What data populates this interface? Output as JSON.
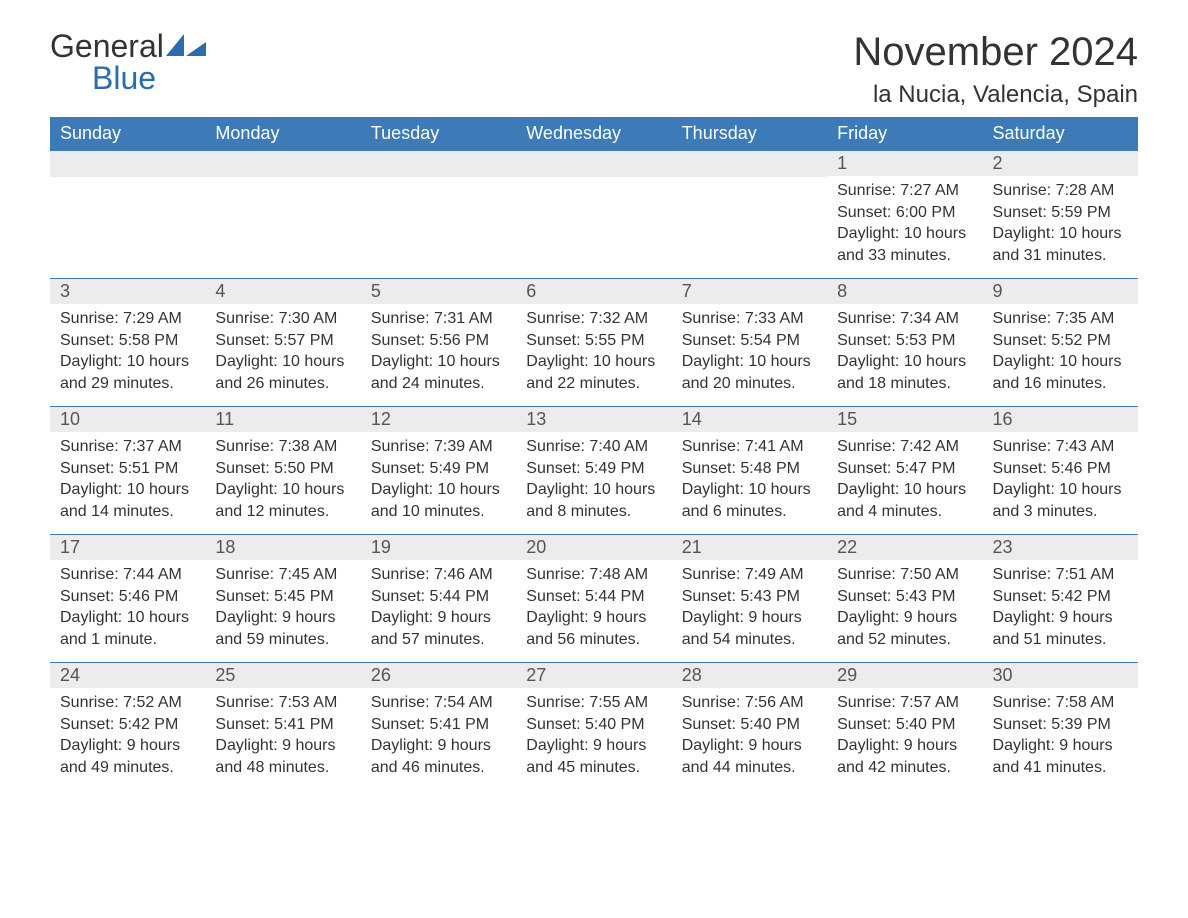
{
  "logo": {
    "general": "General",
    "blue": "Blue"
  },
  "header": {
    "month_title": "November 2024",
    "location": "la Nucia, Valencia, Spain"
  },
  "calendar": {
    "day_headers": [
      "Sunday",
      "Monday",
      "Tuesday",
      "Wednesday",
      "Thursday",
      "Friday",
      "Saturday"
    ],
    "header_bg": "#3d7ab8",
    "header_fg": "#ffffff",
    "daynum_bg": "#ececec",
    "row_border": "#3d7ab8",
    "text_color": "#333333",
    "fontsize_header": 18,
    "fontsize_daynum": 18,
    "fontsize_body": 16,
    "weeks": [
      [
        null,
        null,
        null,
        null,
        null,
        {
          "num": "1",
          "sunrise": "Sunrise: 7:27 AM",
          "sunset": "Sunset: 6:00 PM",
          "daylight": "Daylight: 10 hours and 33 minutes."
        },
        {
          "num": "2",
          "sunrise": "Sunrise: 7:28 AM",
          "sunset": "Sunset: 5:59 PM",
          "daylight": "Daylight: 10 hours and 31 minutes."
        }
      ],
      [
        {
          "num": "3",
          "sunrise": "Sunrise: 7:29 AM",
          "sunset": "Sunset: 5:58 PM",
          "daylight": "Daylight: 10 hours and 29 minutes."
        },
        {
          "num": "4",
          "sunrise": "Sunrise: 7:30 AM",
          "sunset": "Sunset: 5:57 PM",
          "daylight": "Daylight: 10 hours and 26 minutes."
        },
        {
          "num": "5",
          "sunrise": "Sunrise: 7:31 AM",
          "sunset": "Sunset: 5:56 PM",
          "daylight": "Daylight: 10 hours and 24 minutes."
        },
        {
          "num": "6",
          "sunrise": "Sunrise: 7:32 AM",
          "sunset": "Sunset: 5:55 PM",
          "daylight": "Daylight: 10 hours and 22 minutes."
        },
        {
          "num": "7",
          "sunrise": "Sunrise: 7:33 AM",
          "sunset": "Sunset: 5:54 PM",
          "daylight": "Daylight: 10 hours and 20 minutes."
        },
        {
          "num": "8",
          "sunrise": "Sunrise: 7:34 AM",
          "sunset": "Sunset: 5:53 PM",
          "daylight": "Daylight: 10 hours and 18 minutes."
        },
        {
          "num": "9",
          "sunrise": "Sunrise: 7:35 AM",
          "sunset": "Sunset: 5:52 PM",
          "daylight": "Daylight: 10 hours and 16 minutes."
        }
      ],
      [
        {
          "num": "10",
          "sunrise": "Sunrise: 7:37 AM",
          "sunset": "Sunset: 5:51 PM",
          "daylight": "Daylight: 10 hours and 14 minutes."
        },
        {
          "num": "11",
          "sunrise": "Sunrise: 7:38 AM",
          "sunset": "Sunset: 5:50 PM",
          "daylight": "Daylight: 10 hours and 12 minutes."
        },
        {
          "num": "12",
          "sunrise": "Sunrise: 7:39 AM",
          "sunset": "Sunset: 5:49 PM",
          "daylight": "Daylight: 10 hours and 10 minutes."
        },
        {
          "num": "13",
          "sunrise": "Sunrise: 7:40 AM",
          "sunset": "Sunset: 5:49 PM",
          "daylight": "Daylight: 10 hours and 8 minutes."
        },
        {
          "num": "14",
          "sunrise": "Sunrise: 7:41 AM",
          "sunset": "Sunset: 5:48 PM",
          "daylight": "Daylight: 10 hours and 6 minutes."
        },
        {
          "num": "15",
          "sunrise": "Sunrise: 7:42 AM",
          "sunset": "Sunset: 5:47 PM",
          "daylight": "Daylight: 10 hours and 4 minutes."
        },
        {
          "num": "16",
          "sunrise": "Sunrise: 7:43 AM",
          "sunset": "Sunset: 5:46 PM",
          "daylight": "Daylight: 10 hours and 3 minutes."
        }
      ],
      [
        {
          "num": "17",
          "sunrise": "Sunrise: 7:44 AM",
          "sunset": "Sunset: 5:46 PM",
          "daylight": "Daylight: 10 hours and 1 minute."
        },
        {
          "num": "18",
          "sunrise": "Sunrise: 7:45 AM",
          "sunset": "Sunset: 5:45 PM",
          "daylight": "Daylight: 9 hours and 59 minutes."
        },
        {
          "num": "19",
          "sunrise": "Sunrise: 7:46 AM",
          "sunset": "Sunset: 5:44 PM",
          "daylight": "Daylight: 9 hours and 57 minutes."
        },
        {
          "num": "20",
          "sunrise": "Sunrise: 7:48 AM",
          "sunset": "Sunset: 5:44 PM",
          "daylight": "Daylight: 9 hours and 56 minutes."
        },
        {
          "num": "21",
          "sunrise": "Sunrise: 7:49 AM",
          "sunset": "Sunset: 5:43 PM",
          "daylight": "Daylight: 9 hours and 54 minutes."
        },
        {
          "num": "22",
          "sunrise": "Sunrise: 7:50 AM",
          "sunset": "Sunset: 5:43 PM",
          "daylight": "Daylight: 9 hours and 52 minutes."
        },
        {
          "num": "23",
          "sunrise": "Sunrise: 7:51 AM",
          "sunset": "Sunset: 5:42 PM",
          "daylight": "Daylight: 9 hours and 51 minutes."
        }
      ],
      [
        {
          "num": "24",
          "sunrise": "Sunrise: 7:52 AM",
          "sunset": "Sunset: 5:42 PM",
          "daylight": "Daylight: 9 hours and 49 minutes."
        },
        {
          "num": "25",
          "sunrise": "Sunrise: 7:53 AM",
          "sunset": "Sunset: 5:41 PM",
          "daylight": "Daylight: 9 hours and 48 minutes."
        },
        {
          "num": "26",
          "sunrise": "Sunrise: 7:54 AM",
          "sunset": "Sunset: 5:41 PM",
          "daylight": "Daylight: 9 hours and 46 minutes."
        },
        {
          "num": "27",
          "sunrise": "Sunrise: 7:55 AM",
          "sunset": "Sunset: 5:40 PM",
          "daylight": "Daylight: 9 hours and 45 minutes."
        },
        {
          "num": "28",
          "sunrise": "Sunrise: 7:56 AM",
          "sunset": "Sunset: 5:40 PM",
          "daylight": "Daylight: 9 hours and 44 minutes."
        },
        {
          "num": "29",
          "sunrise": "Sunrise: 7:57 AM",
          "sunset": "Sunset: 5:40 PM",
          "daylight": "Daylight: 9 hours and 42 minutes."
        },
        {
          "num": "30",
          "sunrise": "Sunrise: 7:58 AM",
          "sunset": "Sunset: 5:39 PM",
          "daylight": "Daylight: 9 hours and 41 minutes."
        }
      ]
    ]
  }
}
